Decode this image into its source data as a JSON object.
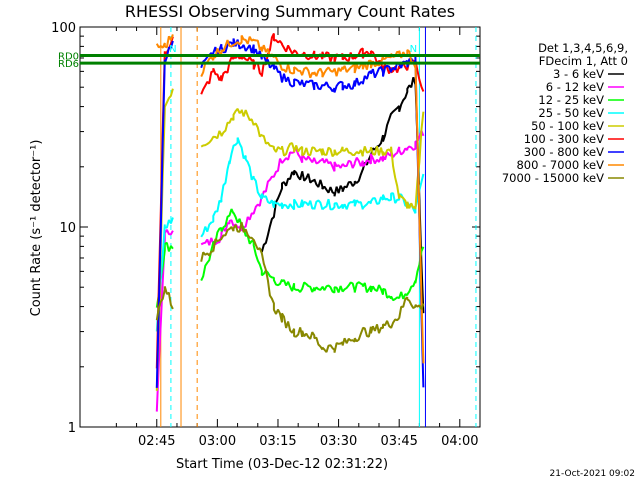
{
  "chart_data": {
    "type": "line",
    "title": "RHESSI Observing Summary Count Rates",
    "xlabel": "Start Time (03-Dec-12 02:31:22)",
    "ylabel": "Count Rate (s⁻¹ detector⁻¹)",
    "y_scale": "log",
    "ylim": [
      1,
      100
    ],
    "xlim_minutes_after_0231": [
      -5,
      94
    ],
    "x_ticks": [
      {
        "label": "02:45",
        "minute": 14
      },
      {
        "label": "03:00",
        "minute": 29
      },
      {
        "label": "03:15",
        "minute": 44
      },
      {
        "label": "03:30",
        "minute": 59
      },
      {
        "label": "03:45",
        "minute": 74
      },
      {
        "label": "04:00",
        "minute": 89
      }
    ],
    "y_ticks": [
      {
        "label": "1",
        "value": 1
      },
      {
        "label": "10",
        "value": 10
      },
      {
        "label": "100",
        "value": 100
      }
    ],
    "legend": {
      "header": [
        "Det 1,3,4,5,6,9,",
        "FDecim 1, Att 0"
      ],
      "placement": "right",
      "entries": [
        {
          "label": "3 - 6 keV",
          "color": "#000000"
        },
        {
          "label": "6 - 12 keV",
          "color": "#ff00ff"
        },
        {
          "label": "12 - 25 keV",
          "color": "#00ff00"
        },
        {
          "label": "25 - 50 keV",
          "color": "#00ffff"
        },
        {
          "label": "50 - 100 keV",
          "color": "#cccc00"
        },
        {
          "label": "100 - 300 keV",
          "color": "#ff0000"
        },
        {
          "label": "300 - 800 keV",
          "color": "#0000ff"
        },
        {
          "label": "800 - 7000 keV",
          "color": "#ff8800"
        },
        {
          "label": "7000 - 15000 keV",
          "color": "#888800"
        }
      ]
    },
    "series": [
      {
        "name": "3 - 6 keV",
        "color": "#000000",
        "x": [
          14,
          18,
          20,
          25,
          30,
          35,
          40,
          45,
          48,
          50,
          53,
          55,
          58,
          60,
          63,
          65,
          67,
          70,
          72,
          74,
          76,
          78,
          80,
          82
        ],
        "y": [
          null,
          null,
          null,
          null,
          null,
          null,
          7.5,
          16,
          19,
          18,
          17,
          16,
          15,
          15.5,
          17,
          19,
          23,
          28,
          35,
          40,
          48,
          55,
          3.5,
          null
        ]
      },
      {
        "name": "6 - 12 keV",
        "color": "#ff00ff",
        "x": [
          14,
          16,
          18,
          20,
          25,
          30,
          32,
          35,
          40,
          45,
          48,
          50,
          53,
          55,
          58,
          60,
          63,
          65,
          67,
          70,
          72,
          74,
          76,
          78,
          80,
          82
        ],
        "y": [
          1.2,
          9,
          10,
          null,
          8,
          9,
          11,
          10,
          14,
          22,
          24,
          22,
          21,
          21,
          20,
          20,
          21,
          21,
          22,
          22,
          23,
          24,
          25,
          26,
          30,
          null
        ]
      },
      {
        "name": "12 - 25 keV",
        "color": "#00ff00",
        "x": [
          14,
          16,
          18,
          20,
          25,
          28,
          30,
          33,
          35,
          38,
          40,
          43,
          45,
          48,
          50,
          53,
          55,
          58,
          60,
          63,
          65,
          67,
          70,
          72,
          74,
          76,
          78,
          80,
          82
        ],
        "y": [
          4,
          8,
          8,
          null,
          5.5,
          8,
          10,
          12,
          10,
          8,
          6,
          5.5,
          5.2,
          5,
          5,
          5,
          5,
          5,
          5,
          5,
          5,
          5,
          4.8,
          4.6,
          4.4,
          4.8,
          5.5,
          8,
          null
        ]
      },
      {
        "name": "25 - 50 keV",
        "color": "#00ffff",
        "x": [
          14,
          16,
          18,
          20,
          25,
          28,
          30,
          32,
          34,
          36,
          38,
          40,
          43,
          45,
          48,
          50,
          53,
          55,
          58,
          60,
          63,
          65,
          67,
          70,
          72,
          74,
          76,
          78,
          80,
          82
        ],
        "y": [
          3,
          10,
          11,
          null,
          9,
          11,
          14,
          22,
          28,
          22,
          17,
          14,
          13,
          13,
          13,
          13,
          13,
          13,
          13,
          13,
          13,
          13,
          13,
          14,
          14,
          14,
          13,
          12,
          18,
          null
        ]
      },
      {
        "name": "50 - 100 keV",
        "color": "#cccc00",
        "x": [
          14,
          16,
          18,
          20,
          25,
          30,
          33,
          35,
          38,
          40,
          43,
          45,
          48,
          50,
          53,
          55,
          58,
          60,
          63,
          65,
          67,
          70,
          72,
          74,
          76,
          78,
          80,
          82
        ],
        "y": [
          1.5,
          40,
          50,
          null,
          26,
          30,
          36,
          38,
          34,
          28,
          24,
          24,
          25,
          24,
          24,
          24,
          24,
          24,
          24,
          24,
          24,
          24,
          24,
          14,
          13,
          12,
          40,
          null
        ]
      },
      {
        "name": "100 - 300 keV",
        "color": "#ff0000",
        "x": [
          14,
          16,
          18,
          20,
          25,
          28,
          30,
          33,
          35,
          38,
          40,
          43,
          45,
          48,
          50,
          53,
          55,
          58,
          60,
          63,
          65,
          67,
          70,
          72,
          74,
          76,
          78,
          80,
          82
        ],
        "y": [
          2,
          75,
          88,
          null,
          45,
          60,
          55,
          70,
          72,
          65,
          60,
          90,
          82,
          75,
          74,
          72,
          71,
          70,
          70,
          72,
          74,
          76,
          62,
          62,
          62,
          64,
          66,
          48,
          null
        ]
      },
      {
        "name": "300 - 800 keV",
        "color": "#0000ff",
        "x": [
          14,
          16,
          18,
          20,
          25,
          28,
          30,
          33,
          35,
          38,
          40,
          43,
          45,
          48,
          50,
          53,
          55,
          58,
          60,
          63,
          65,
          67,
          70,
          72,
          74,
          76,
          78,
          80,
          82
        ],
        "y": [
          1.5,
          70,
          82,
          null,
          62,
          74,
          78,
          83,
          82,
          78,
          70,
          62,
          56,
          53,
          52,
          51,
          51,
          50,
          51,
          52,
          55,
          58,
          60,
          62,
          64,
          66,
          69,
          1.5,
          null
        ]
      },
      {
        "name": "800 - 7000 keV",
        "color": "#ff8800",
        "x": [
          14,
          16,
          18,
          20,
          21,
          22,
          25,
          28,
          30,
          33,
          35,
          38,
          40,
          43,
          45,
          48,
          50,
          53,
          55,
          58,
          60,
          63,
          65,
          67,
          70,
          72,
          74,
          76,
          78,
          80,
          82
        ],
        "y": [
          80,
          80,
          92,
          null,
          85,
          null,
          60,
          72,
          78,
          85,
          87,
          84,
          78,
          70,
          64,
          61,
          60,
          59,
          59,
          60,
          61,
          62,
          64,
          66,
          68,
          70,
          72,
          75,
          66,
          2,
          null
        ]
      },
      {
        "name": "7000 - 15000 keV",
        "color": "#888800",
        "x": [
          14,
          16,
          18,
          20,
          25,
          28,
          30,
          33,
          35,
          38,
          40,
          43,
          45,
          48,
          50,
          53,
          55,
          58,
          60,
          63,
          65,
          67,
          70,
          72,
          74,
          76,
          78,
          80,
          82
        ],
        "y": [
          3.5,
          5,
          4,
          null,
          7,
          8,
          9,
          10,
          10,
          9,
          7,
          4,
          3.5,
          3,
          3,
          2.8,
          2.5,
          2.5,
          2.6,
          2.8,
          3,
          3,
          3.2,
          3.3,
          3.6,
          4.5,
          4,
          4,
          null
        ]
      }
    ],
    "reference_lines": [
      {
        "label": "RD0",
        "y": 72,
        "color": "#008000"
      },
      {
        "label": "RD6",
        "y": 66,
        "color": "#008000"
      }
    ],
    "annotations": [
      {
        "label": "N",
        "x": 77.5,
        "y": 75,
        "color": "#00ffff"
      },
      {
        "label": "N",
        "x": 18,
        "y": 75,
        "color": "#00ffff"
      }
    ],
    "vertical_markers": [
      {
        "x": 17.5,
        "color": "#00ffff",
        "style": "dashed"
      },
      {
        "x": 24,
        "color": "#ff8800",
        "style": "dashed"
      },
      {
        "x": 93,
        "color": "#00ffff",
        "style": "dashed"
      },
      {
        "x": 79,
        "color": "#00ffff",
        "style": "solid"
      },
      {
        "x": 80.5,
        "color": "#0000ff",
        "style": "solid"
      },
      {
        "x": 20,
        "color": "#ff8800",
        "style": "solid"
      },
      {
        "x": 15,
        "color": "#ff8800",
        "style": "solid"
      }
    ],
    "footer_date": "21-Oct-2021 09:02"
  }
}
